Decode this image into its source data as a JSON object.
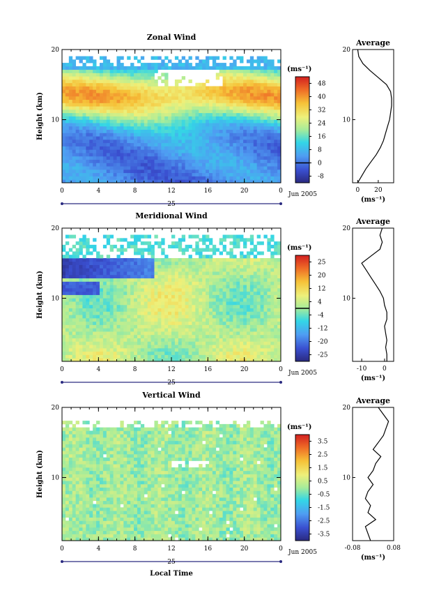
{
  "chart_data": [
    {
      "type": "heatmap",
      "title": "Zonal Wind",
      "ylabel": "Height (km)",
      "xlabel": "",
      "xlim": [
        0,
        24
      ],
      "ylim": [
        1,
        20
      ],
      "xticks": [
        "0",
        "4",
        "8",
        "12",
        "16",
        "20",
        "0"
      ],
      "yticks": [
        "20",
        "10"
      ],
      "date_label": "Jun 2005",
      "day_label": "25",
      "colorbar": {
        "unit": "(ms⁻¹)",
        "min": -12,
        "max": 52,
        "ticks": [
          "-8",
          "0",
          "8",
          "16",
          "24",
          "32",
          "40",
          "48"
        ],
        "zero_line": 0
      },
      "profile": {
        "title": "Average",
        "xlim": [
          -5,
          35
        ],
        "xticks": [
          "0",
          "20"
        ],
        "xlabel": "(ms⁻¹)",
        "yticks": [
          "20",
          "10"
        ],
        "heights": [
          1,
          2,
          3,
          4,
          5,
          6,
          7,
          8,
          9,
          10,
          11,
          12,
          13,
          14,
          15,
          16,
          17,
          18,
          19,
          20
        ],
        "values": [
          0,
          4,
          8,
          13,
          18,
          22,
          25,
          27,
          29,
          31,
          32,
          33,
          33,
          32,
          28,
          20,
          12,
          5,
          1,
          0
        ]
      }
    },
    {
      "type": "heatmap",
      "title": "Meridional Wind",
      "ylabel": "Height (km)",
      "xlabel": "",
      "xlim": [
        0,
        24
      ],
      "ylim": [
        1,
        20
      ],
      "xticks": [
        "0",
        "4",
        "8",
        "12",
        "16",
        "20",
        "0"
      ],
      "yticks": [
        "20",
        "10"
      ],
      "date_label": "Jun 2005",
      "day_label": "25",
      "colorbar": {
        "unit": "(ms⁻¹)",
        "min": -28,
        "max": 28,
        "ticks": [
          "-25",
          "-20",
          "-12",
          "-4",
          "4",
          "12",
          "20",
          "25"
        ],
        "zero_line": 0
      },
      "profile": {
        "title": "Average",
        "xlim": [
          -14,
          4
        ],
        "xticks": [
          "-10",
          "0"
        ],
        "xlabel": "(ms⁻¹)",
        "yticks": [
          "20",
          "10"
        ],
        "heights": [
          1,
          2,
          3,
          4,
          5,
          6,
          7,
          8,
          9,
          10,
          11,
          12,
          13,
          14,
          15,
          16,
          17,
          18,
          19,
          20
        ],
        "values": [
          1,
          1,
          0.5,
          1,
          0.5,
          0,
          1,
          1,
          0,
          -0.5,
          -2,
          -4,
          -6,
          -8,
          -10,
          -6,
          -2,
          -1,
          -2,
          -1
        ]
      }
    },
    {
      "type": "heatmap",
      "title": "Vertical Wind",
      "ylabel": "Height (km)",
      "xlabel": "Local Time",
      "xlim": [
        0,
        24
      ],
      "ylim": [
        1,
        20
      ],
      "xticks": [
        "0",
        "4",
        "8",
        "12",
        "16",
        "20",
        "0"
      ],
      "yticks": [
        "20",
        "10"
      ],
      "date_label": "Jun 2005",
      "day_label": "25",
      "colorbar": {
        "unit": "(ms⁻¹)",
        "min": -4,
        "max": 4,
        "ticks": [
          "-3.5",
          "-2.5",
          "-1.5",
          "-0.5",
          "0.5",
          "1.5",
          "2.5",
          "3.5"
        ],
        "zero_line": null
      },
      "profile": {
        "title": "Average",
        "xlim": [
          -0.08,
          0.08
        ],
        "xticks": [
          "-0.08",
          "0.08"
        ],
        "xlabel": "(ms⁻¹)",
        "yticks": [
          "20",
          "10"
        ],
        "heights": [
          1,
          2,
          3,
          4,
          5,
          6,
          7,
          8,
          9,
          10,
          11,
          12,
          13,
          14,
          15,
          16,
          17,
          18,
          19,
          20
        ],
        "values": [
          -0.01,
          -0.02,
          -0.03,
          0.01,
          -0.02,
          -0.01,
          -0.03,
          -0.02,
          0.0,
          -0.02,
          0.0,
          0.01,
          0.03,
          0.0,
          0.02,
          0.04,
          0.05,
          0.06,
          0.04,
          0.02
        ]
      }
    }
  ]
}
